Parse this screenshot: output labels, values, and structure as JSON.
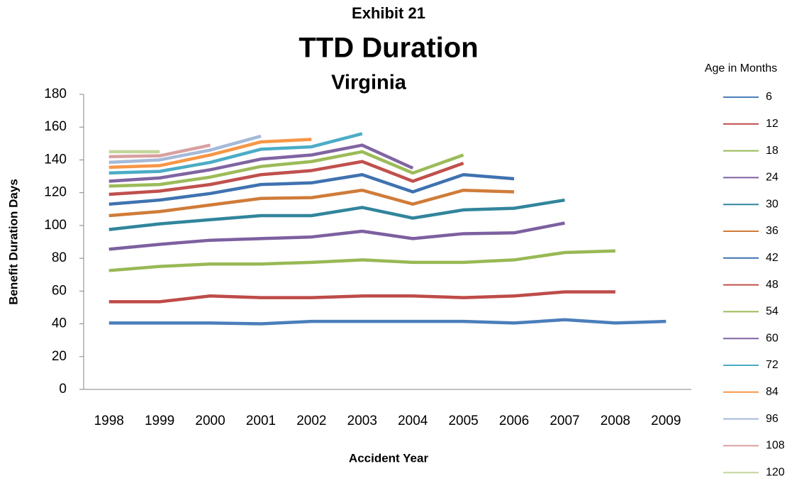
{
  "chart_data": {
    "type": "line",
    "title": "Exhibit 21",
    "subtitle": "TTD Duration",
    "region": "Virginia",
    "x_label": "Accident Year",
    "y_label": "Benefit Duration Days",
    "legend_title": "Age in Months",
    "legend": "right",
    "categories": [
      "1998",
      "1999",
      "2000",
      "2001",
      "2002",
      "2003",
      "2004",
      "2005",
      "2006",
      "2007",
      "2008",
      "2009"
    ],
    "ylim": [
      0,
      180
    ],
    "yticks": [
      0,
      20,
      40,
      60,
      80,
      100,
      120,
      140,
      160,
      180
    ],
    "grid": false,
    "series": [
      {
        "name": "6",
        "color": "#4a7ebb",
        "values": [
          40.5,
          40.5,
          40.5,
          40,
          41.5,
          41.5,
          41.5,
          41.5,
          40.5,
          42.5,
          40.5,
          41.5
        ]
      },
      {
        "name": "12",
        "color": "#be4b48",
        "values": [
          53.5,
          53.5,
          57,
          56,
          56,
          57,
          57,
          56,
          57,
          59.5,
          59.5,
          null
        ]
      },
      {
        "name": "18",
        "color": "#98b954",
        "values": [
          72.5,
          75,
          76.5,
          76.5,
          77.5,
          79,
          77.5,
          77.5,
          79,
          83.5,
          84.5,
          null
        ]
      },
      {
        "name": "24",
        "color": "#7d60a0",
        "values": [
          85.5,
          88.5,
          91,
          92,
          93,
          96.5,
          92,
          95,
          95.5,
          101.5,
          null,
          null
        ]
      },
      {
        "name": "30",
        "color": "#31859c",
        "values": [
          97.5,
          101,
          103.5,
          106,
          106,
          111,
          104.5,
          109.5,
          110.5,
          115.5,
          null,
          null
        ]
      },
      {
        "name": "36",
        "color": "#d07c39",
        "values": [
          106,
          108.5,
          112.5,
          116.5,
          117,
          121.5,
          113,
          121.5,
          120.5,
          null,
          null,
          null
        ]
      },
      {
        "name": "42",
        "color": "#3f72b0",
        "values": [
          113,
          115.5,
          119.5,
          125,
          126,
          131,
          120.5,
          131,
          128.5,
          null,
          null,
          null
        ]
      },
      {
        "name": "48",
        "color": "#c0504d",
        "values": [
          119,
          121,
          125,
          131,
          133.5,
          139,
          127,
          138,
          null,
          null,
          null,
          null
        ]
      },
      {
        "name": "54",
        "color": "#9bbb59",
        "values": [
          124,
          125,
          129.5,
          136,
          139,
          145,
          132,
          143,
          null,
          null,
          null,
          null
        ]
      },
      {
        "name": "60",
        "color": "#8064a2",
        "values": [
          127,
          129,
          134,
          140.5,
          143,
          149,
          135,
          null,
          null,
          null,
          null,
          null
        ]
      },
      {
        "name": "72",
        "color": "#4bacc6",
        "values": [
          132,
          133,
          138.5,
          146.5,
          148,
          156,
          null,
          null,
          null,
          null,
          null,
          null
        ]
      },
      {
        "name": "84",
        "color": "#f79646",
        "values": [
          135.5,
          136.5,
          143,
          151,
          152.5,
          null,
          null,
          null,
          null,
          null,
          null,
          null
        ]
      },
      {
        "name": "96",
        "color": "#a5b9d9",
        "values": [
          138.5,
          140,
          146,
          154.5,
          null,
          null,
          null,
          null,
          null,
          null,
          null,
          null
        ]
      },
      {
        "name": "108",
        "color": "#d9a0a0",
        "values": [
          142,
          142.5,
          149,
          null,
          null,
          null,
          null,
          null,
          null,
          null,
          null,
          null
        ]
      },
      {
        "name": "120",
        "color": "#c3d69b",
        "values": [
          145,
          145,
          null,
          null,
          null,
          null,
          null,
          null,
          null,
          null,
          null,
          null
        ]
      }
    ]
  }
}
